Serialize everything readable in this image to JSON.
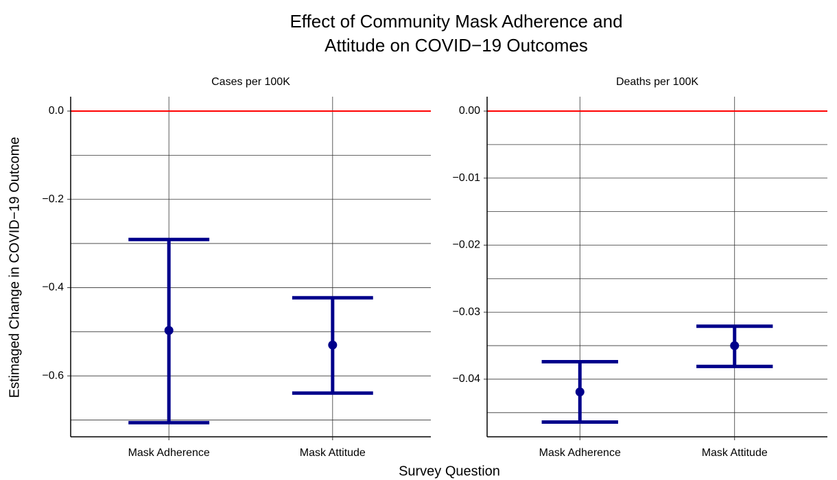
{
  "title": [
    "Effect of Community Mask Adherence and",
    "Attitude on COVID−19 Outcomes"
  ],
  "xlabel": "Survey Question",
  "ylabel": "Estimaged Change in COVID−19 Outcome",
  "chart_data": [
    {
      "type": "errorbar",
      "subtitle": "Cases per 100K",
      "categories": [
        "Mask Adherence",
        "Mask Attitude"
      ],
      "series": [
        {
          "color": "#00008b",
          "values": [
            -0.497,
            -0.53
          ],
          "lower": [
            -0.706,
            -0.639
          ],
          "upper": [
            -0.291,
            -0.423
          ]
        }
      ],
      "ylim": [
        -0.738,
        0.0326
      ],
      "yticks": [
        {
          "value": 0,
          "label": "0.0"
        },
        {
          "value": -0.2,
          "label": "−0.2"
        },
        {
          "value": -0.4,
          "label": "−0.4"
        },
        {
          "value": -0.6,
          "label": "−0.6"
        }
      ],
      "yminor": [
        -0.1,
        -0.3,
        -0.5,
        -0.7
      ],
      "hline": {
        "value": 0,
        "color": "#ff0000"
      },
      "grid": true
    },
    {
      "type": "errorbar",
      "subtitle": "Deaths per 100K",
      "categories": [
        "Mask Adherence",
        "Mask Attitude"
      ],
      "series": [
        {
          "color": "#00008b",
          "values": [
            -0.0419,
            -0.035
          ],
          "lower": [
            -0.0464,
            -0.0381
          ],
          "upper": [
            -0.0374,
            -0.0321
          ]
        }
      ],
      "ylim": [
        -0.0486,
        0.00215
      ],
      "yticks": [
        {
          "value": 0,
          "label": "0.00"
        },
        {
          "value": -0.01,
          "label": "−0.01"
        },
        {
          "value": -0.02,
          "label": "−0.02"
        },
        {
          "value": -0.03,
          "label": "−0.03"
        },
        {
          "value": -0.04,
          "label": "−0.04"
        }
      ],
      "yminor": [
        -0.005,
        -0.015,
        -0.025,
        -0.035,
        -0.045
      ],
      "hline": {
        "value": 0,
        "color": "#ff0000"
      },
      "grid": true
    }
  ]
}
